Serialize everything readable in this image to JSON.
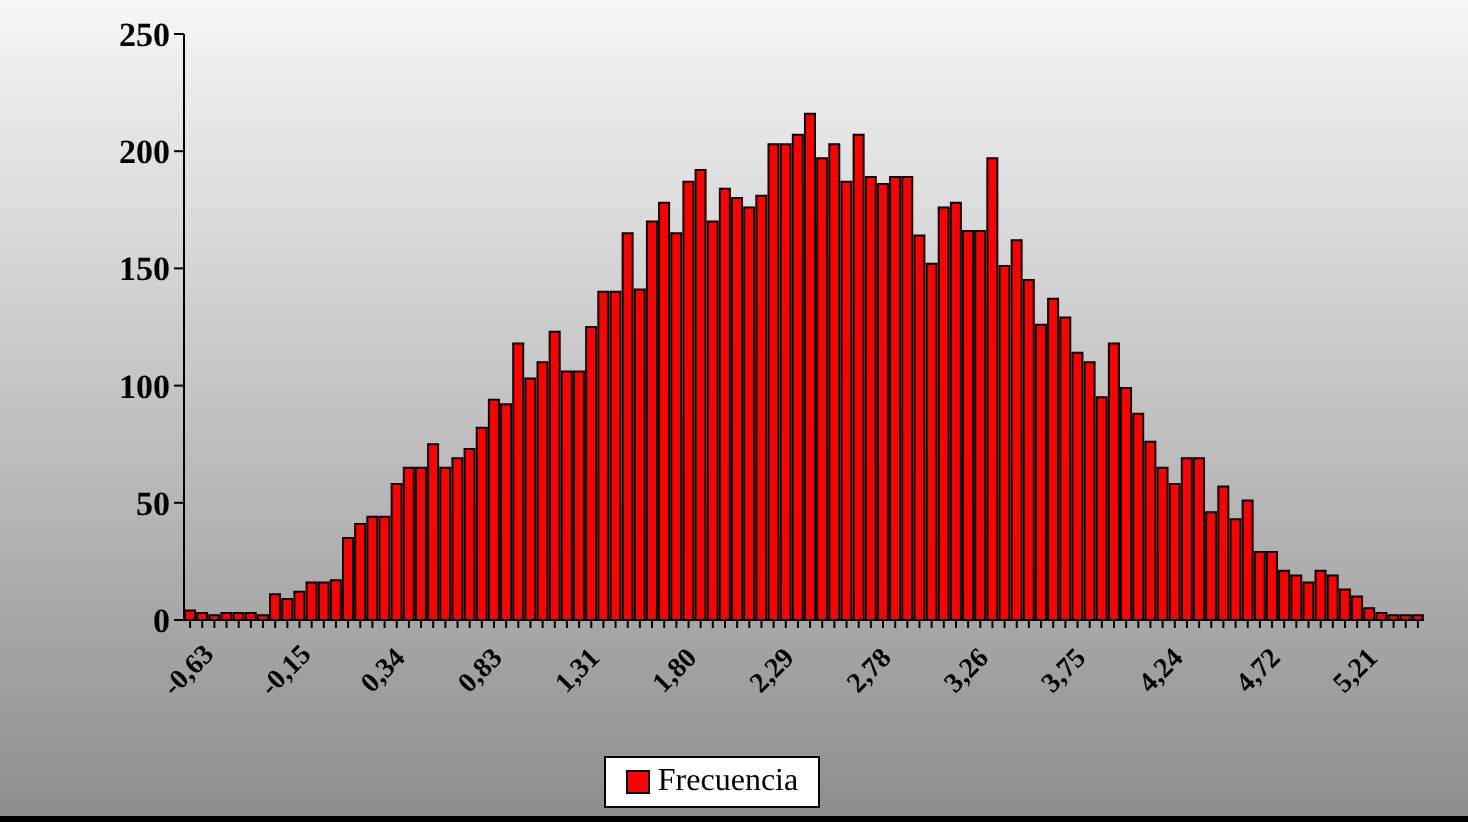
{
  "chart_data": {
    "type": "bar",
    "categories": [
      "-0,63",
      null,
      null,
      null,
      null,
      null,
      null,
      null,
      "-0,15",
      null,
      null,
      null,
      null,
      null,
      null,
      null,
      "0,34",
      null,
      null,
      null,
      null,
      null,
      null,
      null,
      "0,83",
      null,
      null,
      null,
      null,
      null,
      null,
      null,
      "1,31",
      null,
      null,
      null,
      null,
      null,
      null,
      null,
      "1,80",
      null,
      null,
      null,
      null,
      null,
      null,
      null,
      "2,29",
      null,
      null,
      null,
      null,
      null,
      null,
      null,
      "2,78",
      null,
      null,
      null,
      null,
      null,
      null,
      null,
      "3,26",
      null,
      null,
      null,
      null,
      null,
      null,
      null,
      "3,75",
      null,
      null,
      null,
      null,
      null,
      null,
      null,
      "4,24",
      null,
      null,
      null,
      null,
      null,
      null,
      null,
      "4,72",
      null,
      null,
      null,
      null,
      null,
      null,
      null,
      "5,21",
      null,
      null,
      null,
      null,
      null
    ],
    "series": [
      {
        "name": "Frecuencia",
        "color": "#ff0000",
        "values": [
          4,
          3,
          2,
          3,
          3,
          3,
          2,
          11,
          9,
          12,
          16,
          16,
          17,
          35,
          41,
          44,
          44,
          58,
          65,
          65,
          75,
          65,
          69,
          73,
          82,
          94,
          92,
          118,
          103,
          110,
          123,
          106,
          106,
          125,
          140,
          140,
          165,
          141,
          170,
          178,
          165,
          187,
          192,
          170,
          184,
          180,
          176,
          181,
          203,
          203,
          207,
          216,
          197,
          203,
          187,
          207,
          189,
          186,
          189,
          189,
          164,
          152,
          176,
          178,
          166,
          166,
          197,
          151,
          162,
          145,
          126,
          137,
          129,
          114,
          110,
          95,
          118,
          99,
          88,
          76,
          65,
          58,
          69,
          69,
          46,
          57,
          43,
          51,
          29,
          29,
          21,
          19,
          16,
          21,
          19,
          13,
          10,
          5,
          3,
          2,
          2,
          2
        ]
      }
    ],
    "ylim": [
      0,
      250
    ],
    "yticks": [
      0,
      50,
      100,
      150,
      200,
      250
    ],
    "grid": false,
    "legend": "bottom"
  }
}
